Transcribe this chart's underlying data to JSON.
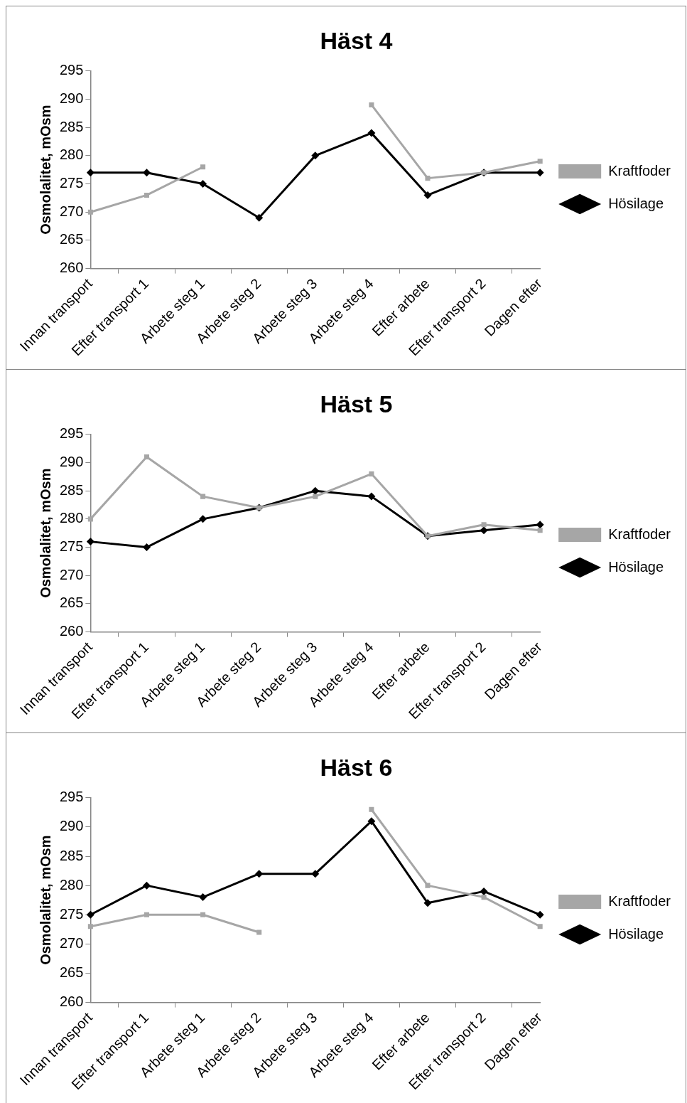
{
  "chart_data": [
    {
      "type": "line",
      "title": "Häst 4",
      "ylabel": "Osmolalitet, mOsm",
      "categories": [
        "Innan transport",
        "Efter transport 1",
        "Arbete steg 1",
        "Arbete steg 2",
        "Arbete steg 3",
        "Arbete steg 4",
        "Efter arbete",
        "Efter transport 2",
        "Dagen efter"
      ],
      "ylim": [
        260,
        295
      ],
      "yticks": [
        260,
        265,
        270,
        275,
        280,
        285,
        290,
        295
      ],
      "grid": false,
      "legend": "right",
      "series": [
        {
          "name": "Hösilage",
          "color": "#000000",
          "marker": "diamond",
          "values": [
            277,
            277,
            275,
            269,
            280,
            284,
            273,
            277,
            277
          ]
        },
        {
          "name": "Kraftfoder",
          "color": "#a6a6a6",
          "marker": "square",
          "values": [
            270,
            273,
            278,
            null,
            null,
            289,
            276,
            277,
            279
          ]
        }
      ]
    },
    {
      "type": "line",
      "title": "Häst 5",
      "ylabel": "Osmolalitet, mOsm",
      "categories": [
        "Innan transport",
        "Efter transport 1",
        "Arbete steg 1",
        "Arbete steg 2",
        "Arbete steg 3",
        "Arbete steg 4",
        "Efter arbete",
        "Efter transport 2",
        "Dagen efter"
      ],
      "ylim": [
        260,
        295
      ],
      "yticks": [
        260,
        265,
        270,
        275,
        280,
        285,
        290,
        295
      ],
      "grid": false,
      "legend": "right",
      "series": [
        {
          "name": "Hösilage",
          "color": "#000000",
          "marker": "diamond",
          "values": [
            276,
            275,
            280,
            282,
            285,
            284,
            277,
            278,
            279
          ]
        },
        {
          "name": "Kraftfoder",
          "color": "#a6a6a6",
          "marker": "square",
          "values": [
            280,
            291,
            284,
            282,
            284,
            288,
            277,
            279,
            278
          ]
        }
      ]
    },
    {
      "type": "line",
      "title": "Häst 6",
      "ylabel": "Osmolalitet, mOsm",
      "categories": [
        "Innan transport",
        "Efter transport 1",
        "Arbete steg 1",
        "Arbete steg 2",
        "Arbete steg 3",
        "Arbete steg 4",
        "Efter arbete",
        "Efter transport 2",
        "Dagen efter"
      ],
      "ylim": [
        260,
        295
      ],
      "yticks": [
        260,
        265,
        270,
        275,
        280,
        285,
        290,
        295
      ],
      "grid": false,
      "legend": "right",
      "series": [
        {
          "name": "Hösilage",
          "color": "#000000",
          "marker": "diamond",
          "values": [
            275,
            280,
            278,
            282,
            282,
            291,
            277,
            279,
            275
          ]
        },
        {
          "name": "Kraftfoder",
          "color": "#a6a6a6",
          "marker": "square",
          "values": [
            273,
            275,
            275,
            272,
            null,
            293,
            280,
            278,
            273
          ]
        }
      ]
    }
  ]
}
